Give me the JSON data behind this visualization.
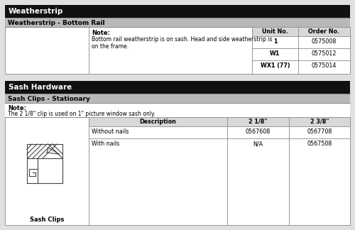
{
  "section1_header": "Weatherstrip",
  "section1_subheader": "Weatherstrip - Bottom Rail",
  "section1_note_label": "Note:",
  "section1_note_text": "Bottom rail weatherstrip is on sash. Head and side weatherstrip is\non the frame.",
  "section1_col1": "Unit No.",
  "section1_col2": "Order No.",
  "section1_rows": [
    [
      "1",
      "0575008"
    ],
    [
      "W1",
      "0575012"
    ],
    [
      "WX1 (77)",
      "0575014"
    ]
  ],
  "section2_header": "Sash Hardware",
  "section2_subheader": "Sash Clips - Stationary",
  "section2_note_label": "Note:",
  "section2_note_text": "The 2 1/8\" clip is used on 1\" picture window sash only.",
  "section2_col1": "Description",
  "section2_col2": "2 1/8\"",
  "section2_col3": "2 3/8\"",
  "section2_rows": [
    [
      "Without nails",
      "0567608",
      "0567708"
    ],
    [
      "With nails",
      "N/A",
      "0567508"
    ]
  ],
  "section2_image_label": "Sash Clips",
  "header_bg": "#111111",
  "header_text": "#ffffff",
  "subheader_bg": "#b8b8b8",
  "subheader_text": "#000000",
  "col_header_bg": "#d8d8d8",
  "body_bg": "#ffffff",
  "page_bg": "#e0e0e0",
  "border_color": "#888888"
}
